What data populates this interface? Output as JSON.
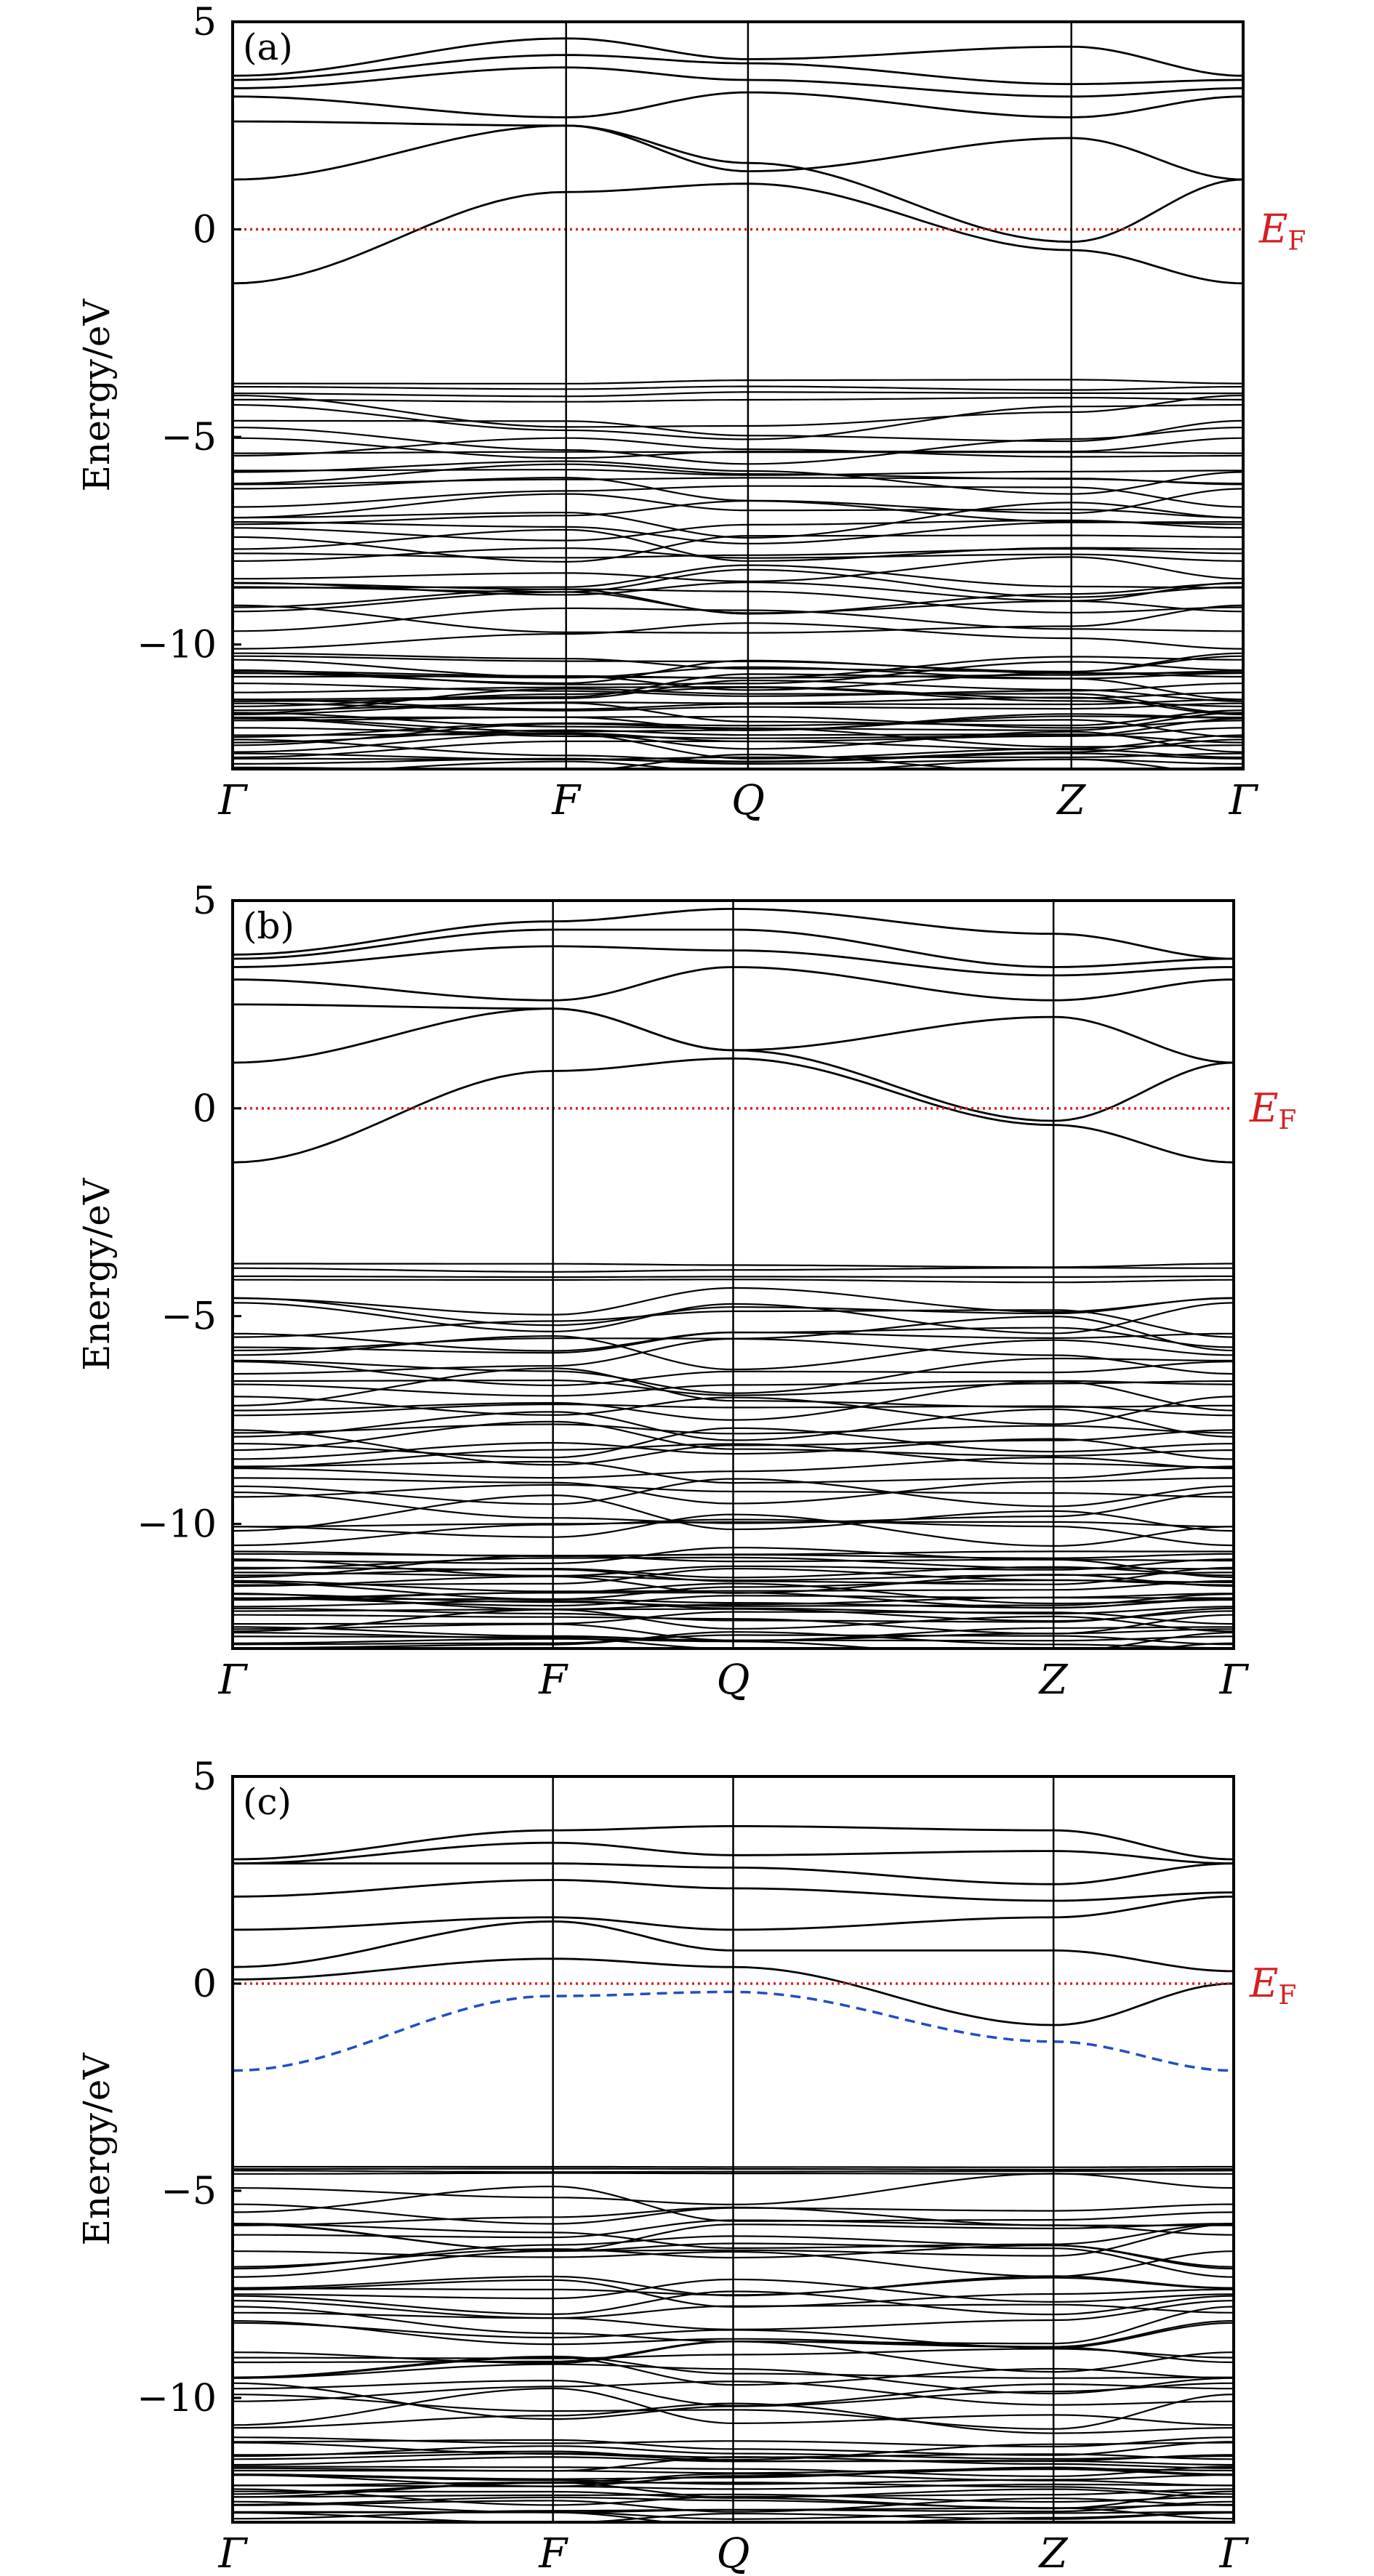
{
  "chart_data": [
    {
      "type": "line",
      "panel": "(a)",
      "ylabel": "Energy/eV",
      "ylim": [
        -13,
        5
      ],
      "yticks": [
        5,
        0,
        -5,
        -10
      ],
      "ytick_labels": [
        "5",
        "0",
        "−5",
        "−10"
      ],
      "kpoints": [
        "Γ",
        "F",
        "Q",
        "Z",
        "Γ"
      ],
      "kpoint_positions": [
        0,
        0.33,
        0.51,
        0.83,
        1.0
      ],
      "fermi_level": {
        "label": "E",
        "subscript": "F",
        "energy": 0,
        "color": "#d42020",
        "style": "dotted"
      },
      "highlight_band": null,
      "conduction_bands": [
        {
          "energies": [
            -1.3,
            0.9,
            1.1,
            -0.5,
            -1.3
          ]
        },
        {
          "energies": [
            1.2,
            2.5,
            1.6,
            -0.3,
            1.2
          ]
        },
        {
          "energies": [
            2.6,
            2.5,
            1.4,
            2.2,
            1.2
          ]
        },
        {
          "energies": [
            3.2,
            2.7,
            3.3,
            2.7,
            3.2
          ]
        },
        {
          "energies": [
            3.4,
            3.9,
            3.6,
            3.2,
            3.4
          ]
        },
        {
          "energies": [
            3.6,
            4.2,
            4.0,
            3.5,
            3.6
          ]
        },
        {
          "energies": [
            3.7,
            4.6,
            4.1,
            4.4,
            3.7
          ]
        }
      ],
      "valence_regions": [
        {
          "from": -4.2,
          "to": -3.6
        },
        {
          "from": -9.8,
          "to": -4.4
        },
        {
          "from": -13.0,
          "to": -10.4
        }
      ]
    },
    {
      "type": "line",
      "panel": "(b)",
      "ylabel": "Energy/eV",
      "ylim": [
        -13,
        5
      ],
      "yticks": [
        5,
        0,
        -5,
        -10
      ],
      "ytick_labels": [
        "5",
        "0",
        "−5",
        "−10"
      ],
      "kpoints": [
        "Γ",
        "F",
        "Q",
        "Z",
        "Γ"
      ],
      "kpoint_positions": [
        0,
        0.32,
        0.5,
        0.82,
        1.0
      ],
      "fermi_level": {
        "label": "E",
        "subscript": "F",
        "energy": 0,
        "color": "#d42020",
        "style": "dotted"
      },
      "highlight_band": null,
      "conduction_bands": [
        {
          "energies": [
            -1.3,
            0.9,
            1.2,
            -0.4,
            -1.3
          ]
        },
        {
          "energies": [
            1.1,
            2.4,
            1.4,
            -0.3,
            1.1
          ]
        },
        {
          "energies": [
            2.5,
            2.4,
            1.4,
            2.2,
            1.1
          ]
        },
        {
          "energies": [
            3.1,
            2.6,
            3.4,
            2.6,
            3.1
          ]
        },
        {
          "energies": [
            3.4,
            3.9,
            3.8,
            3.2,
            3.4
          ]
        },
        {
          "energies": [
            3.6,
            4.3,
            4.3,
            3.4,
            3.6
          ]
        },
        {
          "energies": [
            3.7,
            4.5,
            4.8,
            4.2,
            3.6
          ]
        }
      ],
      "valence_regions": [
        {
          "from": -4.2,
          "to": -3.7
        },
        {
          "from": -10.3,
          "to": -4.6
        },
        {
          "from": -13.0,
          "to": -10.7
        }
      ]
    },
    {
      "type": "line",
      "panel": "(c)",
      "ylabel": "Energy/eV",
      "ylim": [
        -13,
        5
      ],
      "yticks": [
        5,
        0,
        -5,
        -10
      ],
      "ytick_labels": [
        "5",
        "0",
        "−5",
        "−10"
      ],
      "kpoints": [
        "Γ",
        "F",
        "Q",
        "Z",
        "Γ"
      ],
      "kpoint_positions": [
        0,
        0.32,
        0.5,
        0.82,
        1.0
      ],
      "fermi_level": {
        "label": "E",
        "subscript": "F",
        "energy": 0,
        "color": "#d42020",
        "style": "dotted"
      },
      "highlight_band": {
        "color": "#1f4fbf",
        "style": "dashed",
        "energies": [
          -2.1,
          -0.3,
          -0.2,
          -1.4,
          -2.1
        ]
      },
      "conduction_bands": [
        {
          "energies": [
            0.1,
            0.6,
            0.4,
            -1.0,
            0.0
          ]
        },
        {
          "energies": [
            0.4,
            1.5,
            0.8,
            0.8,
            0.3
          ]
        },
        {
          "energies": [
            1.3,
            1.6,
            1.3,
            1.6,
            2.1
          ]
        },
        {
          "energies": [
            2.1,
            2.5,
            2.3,
            2.0,
            2.2
          ]
        },
        {
          "energies": [
            2.9,
            2.9,
            2.8,
            2.4,
            2.9
          ]
        },
        {
          "energies": [
            2.9,
            3.4,
            3.1,
            3.2,
            2.9
          ]
        },
        {
          "energies": [
            3.0,
            3.7,
            3.8,
            3.7,
            3.0
          ]
        }
      ],
      "valence_regions": [
        {
          "from": -4.6,
          "to": -4.4
        },
        {
          "from": -10.6,
          "to": -5.0
        },
        {
          "from": -13.0,
          "to": -11.1
        }
      ]
    }
  ]
}
